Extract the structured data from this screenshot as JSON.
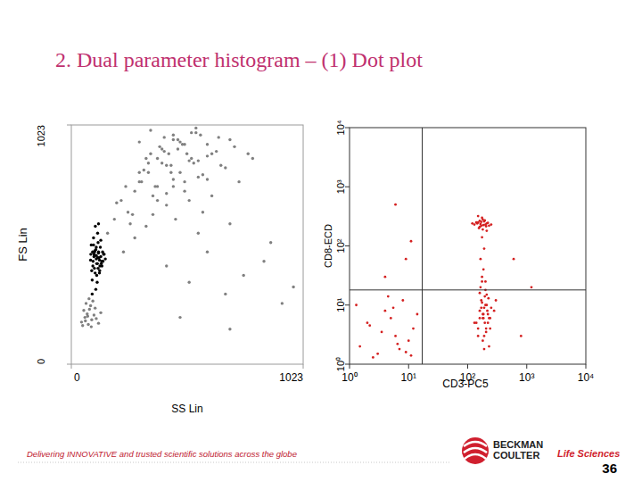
{
  "header": {
    "title": "2. Dual parameter histogram – (1) Dot plot"
  },
  "footer": {
    "tagline": "Delivering INNOVATIVE and trusted scientific solutions across the globe",
    "brand": [
      "BECKMAN",
      "COULTER"
    ],
    "division": "Life Sciences",
    "page": 36
  },
  "chart_data": [
    {
      "type": "scatter",
      "x_label": "SS Lin",
      "y_label": "FS Lin",
      "xlim": [
        0,
        1023
      ],
      "ylim": [
        0,
        1023
      ],
      "xticks": [
        0,
        1023
      ],
      "yticks": [
        0,
        1023
      ],
      "marker": "dot",
      "series": [
        {
          "color": "#808080",
          "x": [
            45,
            60,
            75,
            90,
            55,
            70,
            85,
            100,
            120,
            65,
            50,
            80,
            95,
            110,
            130,
            62,
            78,
            88,
            105,
            72
          ],
          "values": [
            180,
            200,
            170,
            190,
            230,
            215,
            250,
            210,
            175,
            260,
            165,
            235,
            270,
            195,
            220,
            185,
            280,
            160,
            240,
            205
          ]
        },
        {
          "color": "#808080",
          "x": [
            160,
            190,
            220,
            250,
            280,
            310,
            340,
            370,
            400,
            430,
            200,
            240,
            270,
            300,
            330,
            360,
            390,
            420,
            450,
            480,
            260,
            300,
            340,
            380,
            410,
            440,
            470,
            500,
            530,
            560,
            320,
            350,
            380,
            410,
            440,
            470,
            500,
            530,
            560,
            600,
            380,
            420,
            450,
            480,
            510,
            540,
            570,
            600,
            640,
            680,
            450,
            490,
            520,
            550,
            580,
            620,
            660,
            700,
            740,
            800,
            230,
            280,
            330,
            360,
            420,
            460,
            520,
            580,
            620,
            700,
            300,
            350,
            400,
            450,
            500,
            550,
            600,
            650,
            720,
            780,
            420,
            520,
            600,
            680,
            760,
            850,
            930,
            480,
            700,
            880,
            560,
            980
          ],
          "values": [
            560,
            620,
            700,
            650,
            740,
            780,
            820,
            760,
            860,
            900,
            690,
            760,
            640,
            820,
            880,
            720,
            930,
            850,
            790,
            950,
            600,
            780,
            860,
            700,
            910,
            820,
            960,
            740,
            880,
            800,
            830,
            900,
            760,
            970,
            850,
            920,
            780,
            990,
            870,
            940,
            880,
            730,
            960,
            820,
            900,
            860,
            980,
            790,
            910,
            840,
            760,
            940,
            870,
            990,
            810,
            900,
            850,
            960,
            780,
            880,
            480,
            540,
            590,
            640,
            680,
            620,
            700,
            650,
            720,
            600,
            950,
            1000,
            920,
            980,
            940,
            1010,
            890,
            970,
            930,
            900,
            420,
            350,
            480,
            300,
            380,
            440,
            260,
            200,
            150,
            520,
            560,
            330
          ]
        },
        {
          "color": "#000000",
          "x": [
            95,
            110,
            120,
            105,
            130,
            88,
            115,
            125,
            100,
            140,
            92,
            118,
            108,
            135,
            98,
            122,
            112,
            85,
            128,
            145,
            102,
            116,
            94,
            132,
            106,
            124,
            90,
            138,
            114,
            100,
            126,
            110,
            96,
            120,
            150,
            104,
            118,
            86,
            130,
            112,
            108,
            142,
            98,
            124,
            116,
            134,
            102,
            92,
            120,
            110
          ],
          "values": [
            420,
            450,
            480,
            390,
            460,
            510,
            430,
            400,
            470,
            440,
            360,
            520,
            490,
            420,
            540,
            455,
            380,
            445,
            500,
            470,
            410,
            560,
            480,
            430,
            590,
            445,
            400,
            480,
            350,
            460,
            420,
            500,
            440,
            600,
            450,
            485,
            410,
            470,
            530,
            430,
            320,
            470,
            510,
            390,
            455,
            440,
            480,
            300,
            475,
            465
          ]
        }
      ]
    },
    {
      "type": "scatter",
      "x_label": "CD3-PC5",
      "y_label": "CD8-ECD",
      "log": true,
      "xlim": [
        1,
        10000
      ],
      "ylim": [
        1,
        10000
      ],
      "xticks": [
        {
          "value": 1,
          "label": "10⁰"
        },
        {
          "value": 10,
          "label": "10¹"
        },
        {
          "value": 100,
          "label": "10²"
        },
        {
          "value": 1000,
          "label": "10³"
        },
        {
          "value": 10000,
          "label": "10⁴"
        }
      ],
      "yticks": [
        {
          "value": 1,
          "label": "10⁰"
        },
        {
          "value": 10,
          "label": "10¹"
        },
        {
          "value": 100,
          "label": "10²"
        },
        {
          "value": 1000,
          "label": "10³"
        },
        {
          "value": 10000,
          "label": "10⁴"
        }
      ],
      "quadrant": {
        "x": 17,
        "y": 18
      },
      "marker": "dot",
      "series": [
        {
          "color": "#d42020",
          "x": [
            130,
            150,
            170,
            190,
            210,
            160,
            180,
            200,
            140,
            220,
            165,
            185,
            175,
            155,
            195,
            145,
            205,
            170,
            180,
            160,
            250,
            120,
            230,
            175,
            190,
            150,
            210,
            165,
            185,
            200
          ],
          "values": [
            230,
            250,
            220,
            260,
            240,
            210,
            280,
            230,
            250,
            245,
            235,
            225,
            300,
            200,
            270,
            240,
            215,
            255,
            190,
            265,
            230,
            240,
            220,
            140,
            90,
            320,
            180,
            60,
            40,
            25
          ]
        },
        {
          "color": "#d42020",
          "x": [
            140,
            160,
            180,
            200,
            220,
            240,
            170,
            190,
            210,
            230,
            150,
            175,
            195,
            215,
            250,
            165,
            185,
            205,
            225,
            180,
            200,
            160,
            190,
            210,
            175,
            280,
            130,
            230,
            195,
            170,
            185,
            205,
            160,
            220,
            180,
            300,
            150,
            240,
            190,
            175
          ],
          "values": [
            5,
            8,
            6,
            10,
            7,
            4,
            12,
            9,
            15,
            6,
            3,
            11,
            5,
            8,
            9,
            20,
            7,
            4,
            13,
            2.5,
            18,
            6,
            3,
            10,
            25,
            8,
            5,
            2,
            14,
            9,
            6,
            3.5,
            16,
            5,
            7,
            12,
            4,
            6,
            1.8,
            30
          ]
        },
        {
          "color": "#d42020",
          "x": [
            1.5,
            2,
            3,
            4,
            6,
            8,
            10,
            2.5,
            5,
            7,
            12,
            1.3,
            3.5,
            9,
            4.5,
            6.5,
            14,
            2.2,
            11,
            5.5,
            4,
            11,
            6,
            9,
            800,
            1200,
            600
          ],
          "values": [
            2,
            5,
            1.5,
            8,
            3,
            12,
            2.5,
            1.3,
            6,
            1.8,
            4,
            10,
            3.5,
            1.6,
            14,
            2.2,
            7,
            4.5,
            1.4,
            9,
            30,
            120,
            500,
            60,
            3,
            20,
            60
          ]
        }
      ]
    }
  ]
}
